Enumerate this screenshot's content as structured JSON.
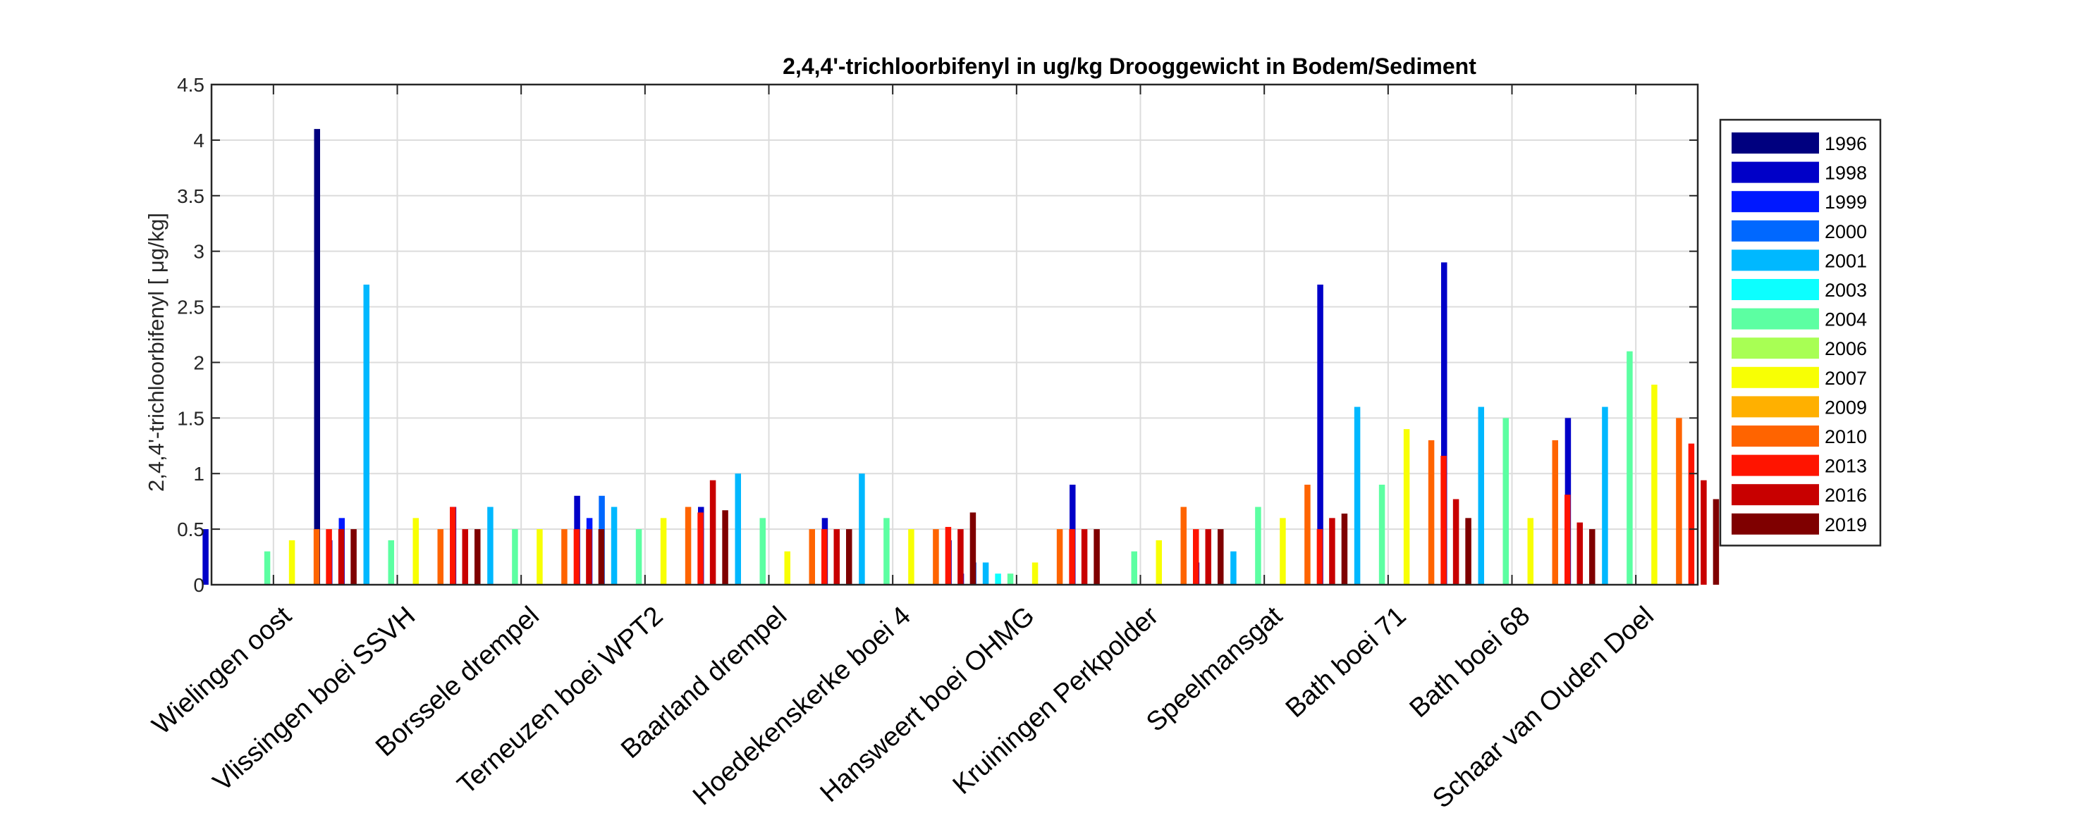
{
  "chart_data": {
    "type": "bar",
    "title": "2,4,4'-trichloorbifenyl in ug/kg Drooggewicht in Bodem/Sediment",
    "xlabel": "",
    "ylabel": "2,4,4'-trichloorbifenyl [ μg/kg]",
    "ylim": [
      0,
      4.5
    ],
    "yticks": [
      "0",
      "0.5",
      "1",
      "1.5",
      "2",
      "2.5",
      "3",
      "3.5",
      "4",
      "4.5"
    ],
    "grid": true,
    "legend_position": "right",
    "categories": [
      "Wielingen oost",
      "Vlissingen boei SSVH",
      "Borssele drempel",
      "Terneuzen boei WPT2",
      "Baarland drempel",
      "Hoedekenskerke boei 4",
      "Hansweert boei OHMG",
      "Kruiningen Perkpolder",
      "Speelmansgat",
      "Bath boei 71",
      "Bath boei 68",
      "Schaar van Ouden Doel"
    ],
    "series": [
      {
        "name": "1996",
        "color": "#00007f",
        "values": [
          null,
          4.1,
          null,
          null,
          null,
          null,
          null,
          null,
          null,
          null,
          null,
          null
        ]
      },
      {
        "name": "1998",
        "color": "#0000c8",
        "values": [
          0.5,
          0.4,
          0.7,
          0.8,
          0.7,
          0.6,
          0.4,
          0.9,
          0.2,
          2.7,
          2.9,
          1.5
        ]
      },
      {
        "name": "1999",
        "color": "#0018ff",
        "values": [
          null,
          0.6,
          null,
          0.6,
          null,
          null,
          0.1,
          null,
          null,
          null,
          null,
          null
        ]
      },
      {
        "name": "2000",
        "color": "#0068ff",
        "values": [
          null,
          null,
          null,
          0.8,
          null,
          null,
          0.2,
          null,
          null,
          null,
          null,
          null
        ]
      },
      {
        "name": "2001",
        "color": "#00b8ff",
        "values": [
          null,
          2.7,
          0.7,
          0.7,
          1.0,
          1.0,
          0.2,
          null,
          0.3,
          1.6,
          1.6,
          1.6
        ]
      },
      {
        "name": "2003",
        "color": "#0cffff",
        "values": [
          null,
          null,
          null,
          null,
          null,
          null,
          0.1,
          null,
          null,
          null,
          null,
          null
        ]
      },
      {
        "name": "2004",
        "color": "#5cffa2",
        "values": [
          0.3,
          0.4,
          0.5,
          0.5,
          0.6,
          0.6,
          0.1,
          0.3,
          0.7,
          0.9,
          1.5,
          2.1
        ]
      },
      {
        "name": "2006",
        "color": "#a8ff54",
        "values": [
          null,
          null,
          null,
          null,
          null,
          null,
          null,
          null,
          null,
          null,
          null,
          null
        ]
      },
      {
        "name": "2007",
        "color": "#f8ff04",
        "values": [
          0.4,
          0.6,
          0.5,
          0.6,
          0.3,
          0.5,
          0.2,
          0.4,
          0.6,
          1.4,
          0.6,
          1.8
        ]
      },
      {
        "name": "2009",
        "color": "#ffb000",
        "values": [
          null,
          null,
          null,
          null,
          null,
          null,
          null,
          null,
          null,
          null,
          null,
          null
        ]
      },
      {
        "name": "2010",
        "color": "#ff6400",
        "values": [
          0.5,
          0.5,
          0.5,
          0.7,
          0.5,
          0.5,
          0.5,
          0.7,
          0.9,
          1.3,
          1.3,
          1.5
        ]
      },
      {
        "name": "2013",
        "color": "#ff1400",
        "values": [
          0.5,
          0.7,
          0.5,
          0.65,
          0.5,
          0.52,
          0.5,
          0.5,
          0.5,
          1.16,
          0.81,
          1.27
        ]
      },
      {
        "name": "2016",
        "color": "#c80000",
        "values": [
          0.5,
          0.5,
          0.5,
          0.94,
          0.5,
          0.5,
          0.5,
          0.5,
          0.6,
          0.77,
          0.56,
          0.94
        ]
      },
      {
        "name": "2019",
        "color": "#7f0000",
        "values": [
          0.5,
          0.5,
          0.5,
          0.67,
          0.5,
          0.65,
          0.5,
          0.5,
          0.64,
          0.6,
          0.5,
          0.77
        ]
      }
    ]
  }
}
